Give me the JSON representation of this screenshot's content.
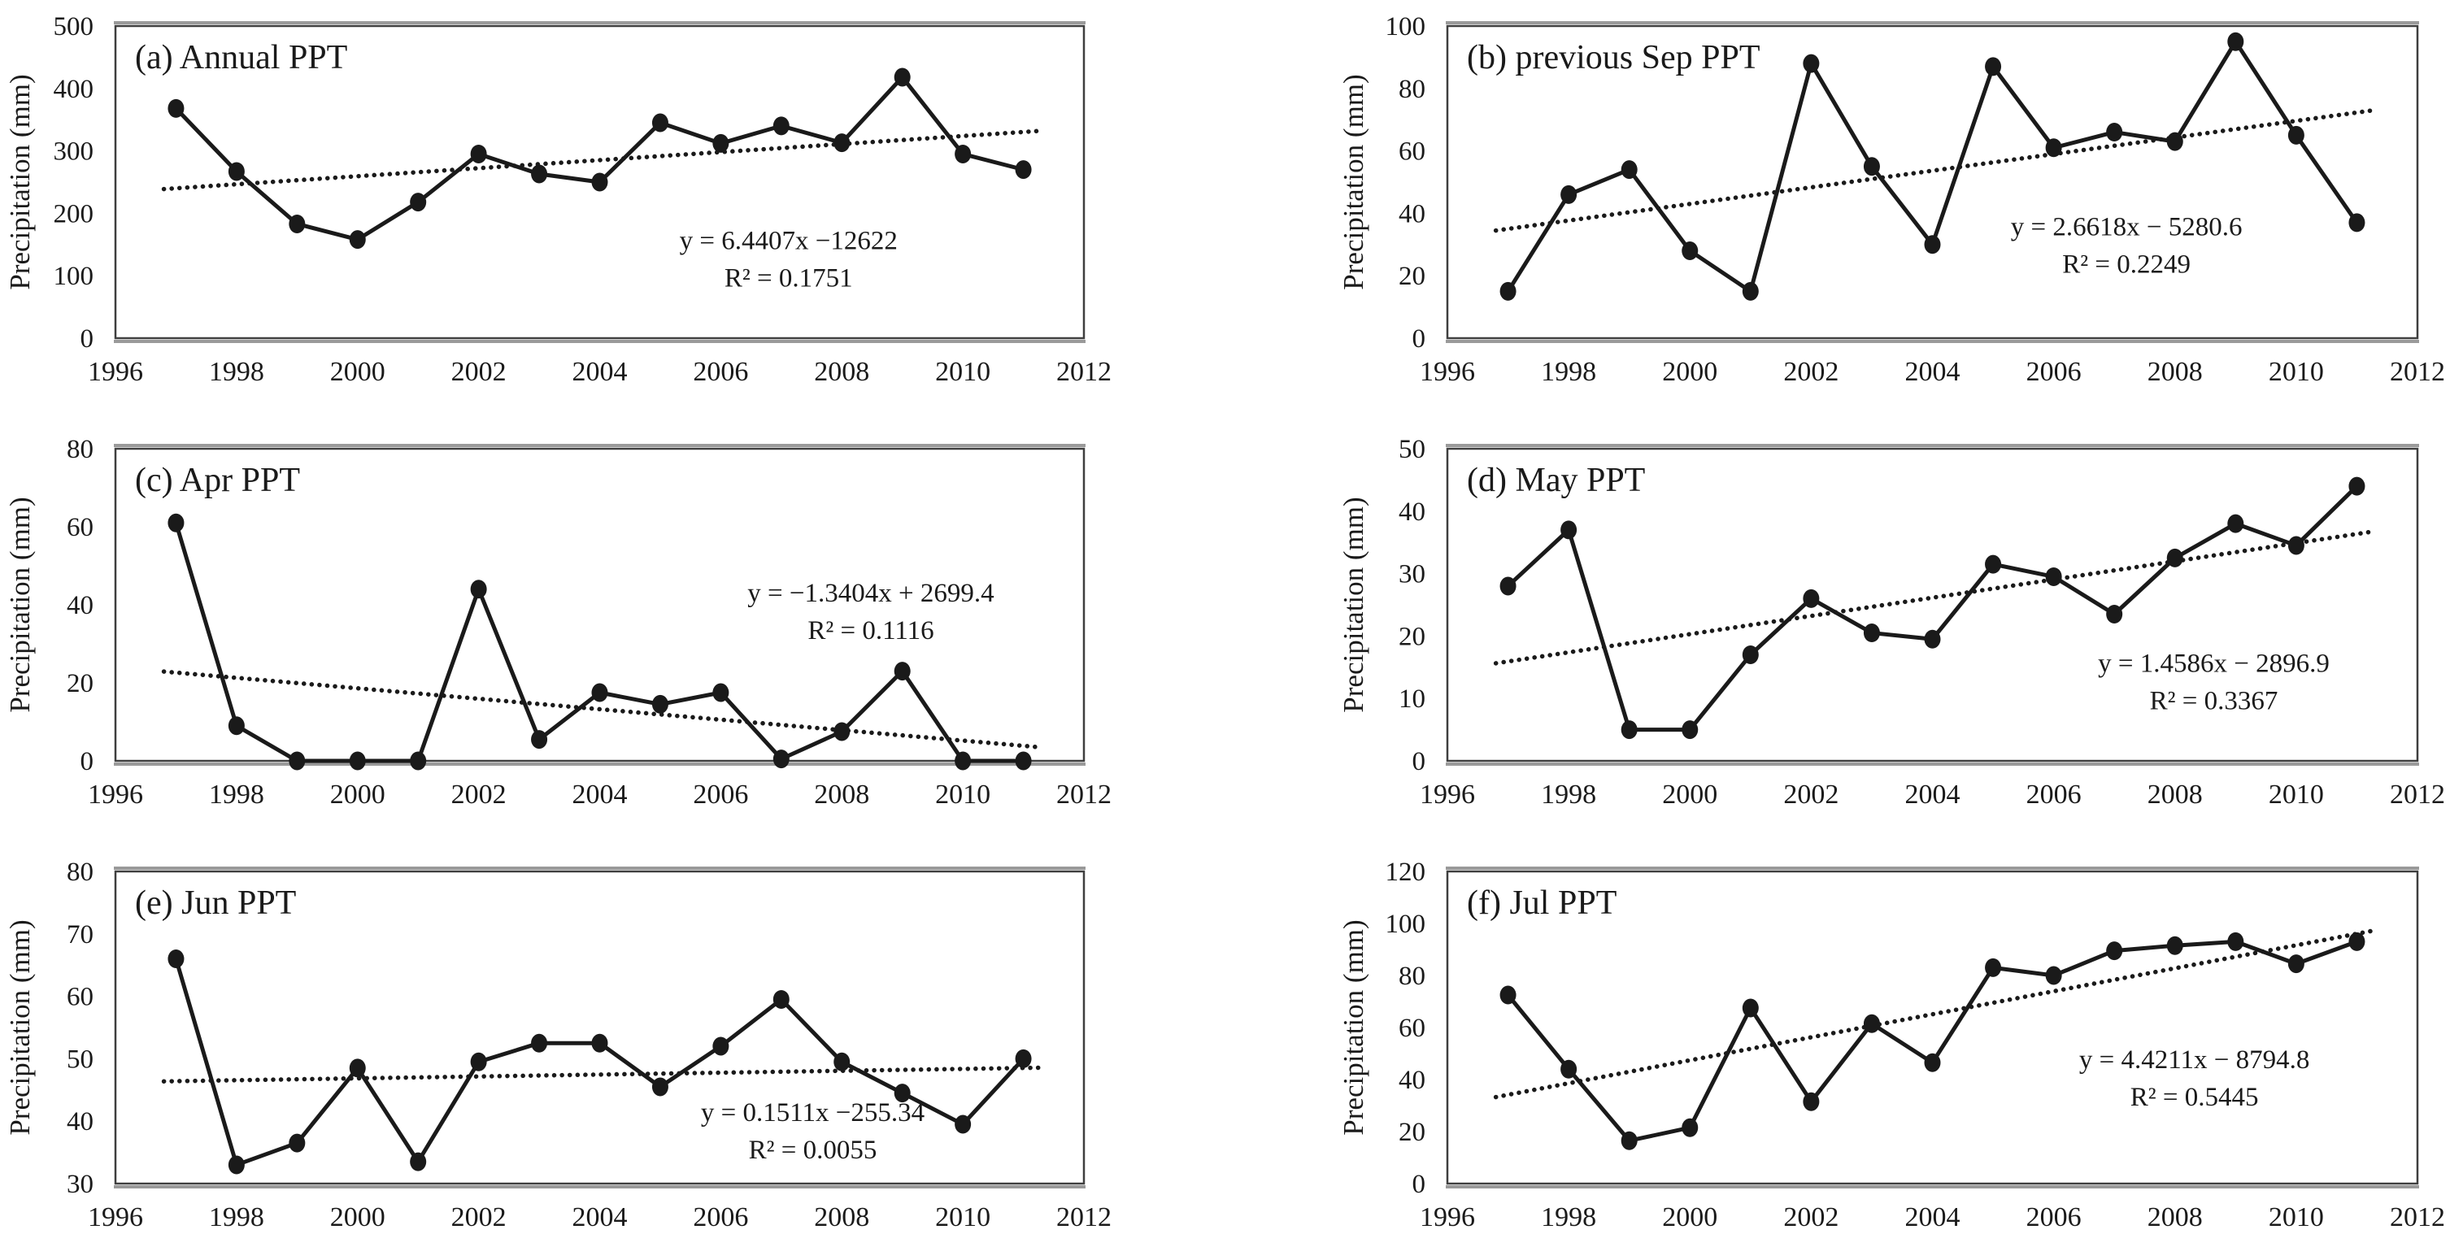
{
  "figure": {
    "description": "Six-panel precipitation trend figure, 1996-2012",
    "background_color": "#ffffff",
    "line_color": "#1a1a1a",
    "border_color": "#3f3f3f",
    "shadow_color": "#9a9a9a"
  },
  "chart_data": [
    {
      "type": "line",
      "panel": "a",
      "title": "(a) Annual PPT",
      "ylabel": "Precipitation (mm)",
      "x": [
        1997,
        1998,
        1999,
        2000,
        2001,
        2002,
        2003,
        2004,
        2005,
        2006,
        2007,
        2008,
        2009,
        2010,
        2011
      ],
      "values": [
        368,
        267,
        183,
        158,
        218,
        295,
        263,
        250,
        345,
        312,
        340,
        313,
        418,
        295,
        270
      ],
      "xlim": [
        1996,
        2012
      ],
      "xtick_step": 2,
      "ylim": [
        0,
        500
      ],
      "ytick_step": 100,
      "grid": false,
      "marker": "filled-circle",
      "trendline": {
        "slope": 6.4407,
        "intercept": -12622,
        "style": "dotted"
      },
      "equation_line1": "y = 6.4407x −12622",
      "equation_line2": "R² = 0.1751",
      "eq_pos": {
        "fx": 0.695,
        "fy": 0.715
      }
    },
    {
      "type": "line",
      "panel": "b",
      "title": "(b) previous Sep PPT",
      "ylabel": "Precipitation (mm)",
      "x": [
        1997,
        1998,
        1999,
        2000,
        2001,
        2002,
        2003,
        2004,
        2005,
        2006,
        2007,
        2008,
        2009,
        2010,
        2011
      ],
      "values": [
        15,
        46,
        54,
        28,
        15,
        88,
        55,
        30,
        87,
        61,
        66,
        63,
        95,
        65,
        37
      ],
      "xlim": [
        1996,
        2012
      ],
      "xtick_step": 2,
      "ylim": [
        0,
        100
      ],
      "ytick_step": 20,
      "grid": false,
      "marker": "filled-circle",
      "trendline": {
        "slope": 2.6618,
        "intercept": -5280.6,
        "style": "dotted"
      },
      "equation_line1": "y = 2.6618x − 5280.6",
      "equation_line2": "R² = 0.2249",
      "eq_pos": {
        "fx": 0.7,
        "fy": 0.67
      }
    },
    {
      "type": "line",
      "panel": "c",
      "title": "(c) Apr PPT",
      "ylabel": "Precipitation (mm)",
      "x": [
        1997,
        1998,
        1999,
        2000,
        2001,
        2002,
        2003,
        2004,
        2005,
        2006,
        2007,
        2008,
        2009,
        2010,
        2011
      ],
      "values": [
        61,
        9,
        0,
        0,
        0,
        44,
        5.5,
        17.5,
        14.5,
        17.5,
        0.5,
        7.5,
        23,
        0,
        0
      ],
      "xlim": [
        1996,
        2012
      ],
      "xtick_step": 2,
      "ylim": [
        0,
        80
      ],
      "ytick_step": 20,
      "grid": false,
      "marker": "filled-circle",
      "trendline": {
        "slope": -1.3404,
        "intercept": 2699.4,
        "style": "dotted"
      },
      "equation_line1": "y = −1.3404x + 2699.4",
      "equation_line2": "R² = 0.1116",
      "eq_pos": {
        "fx": 0.78,
        "fy": 0.49
      }
    },
    {
      "type": "line",
      "panel": "d",
      "title": "(d) May PPT",
      "ylabel": "Precipitation (mm)",
      "x": [
        1997,
        1998,
        1999,
        2000,
        2001,
        2002,
        2003,
        2004,
        2005,
        2006,
        2007,
        2008,
        2009,
        2010,
        2011
      ],
      "values": [
        28,
        37,
        5,
        5,
        17,
        26,
        20.5,
        19.5,
        31.5,
        29.5,
        23.5,
        32.5,
        38,
        34.5,
        44
      ],
      "xlim": [
        1996,
        2012
      ],
      "xtick_step": 2,
      "ylim": [
        0,
        50
      ],
      "ytick_step": 10,
      "grid": false,
      "marker": "filled-circle",
      "trendline": {
        "slope": 1.4586,
        "intercept": -2896.9,
        "style": "dotted"
      },
      "equation_line1": "y = 1.4586x − 2896.9",
      "equation_line2": "R² = 0.3367",
      "eq_pos": {
        "fx": 0.79,
        "fy": 0.715
      }
    },
    {
      "type": "line",
      "panel": "e",
      "title": "(e) Jun PPT",
      "ylabel": "Precipitation (mm)",
      "x": [
        1997,
        1998,
        1999,
        2000,
        2001,
        2002,
        2003,
        2004,
        2005,
        2006,
        2007,
        2008,
        2009,
        2010,
        2011
      ],
      "values": [
        66,
        33,
        36.5,
        48.5,
        33.5,
        49.5,
        52.5,
        52.5,
        45.5,
        52,
        59.5,
        49.5,
        44.5,
        39.5,
        50
      ],
      "xlim": [
        1996,
        2012
      ],
      "xtick_step": 2,
      "ylim": [
        30,
        80
      ],
      "ytick_step": 10,
      "grid": false,
      "marker": "filled-circle",
      "trendline": {
        "slope": 0.1511,
        "intercept": -255.34,
        "style": "dotted"
      },
      "equation_line1": "y = 0.1511x −255.34",
      "equation_line2": "R² = 0.0055",
      "eq_pos": {
        "fx": 0.72,
        "fy": 0.8
      }
    },
    {
      "type": "line",
      "panel": "f",
      "title": "(f) Jul PPT",
      "ylabel": "Precipitation (mm)",
      "x": [
        1997,
        1998,
        1999,
        2000,
        2001,
        2002,
        2003,
        2004,
        2005,
        2006,
        2007,
        2008,
        2009,
        2010,
        2011
      ],
      "values": [
        72.5,
        44,
        16.5,
        21.5,
        67.5,
        31.5,
        61.5,
        46.5,
        83,
        80,
        89.5,
        91.5,
        93,
        84.5,
        93
      ],
      "xlim": [
        1996,
        2012
      ],
      "xtick_step": 2,
      "ylim": [
        0,
        120
      ],
      "ytick_step": 20,
      "grid": false,
      "marker": "filled-circle",
      "trendline": {
        "slope": 4.4211,
        "intercept": -8794.8,
        "style": "dotted"
      },
      "equation_line1": "y = 4.4211x − 8794.8",
      "equation_line2": "R² = 0.5445",
      "eq_pos": {
        "fx": 0.77,
        "fy": 0.63
      }
    }
  ]
}
